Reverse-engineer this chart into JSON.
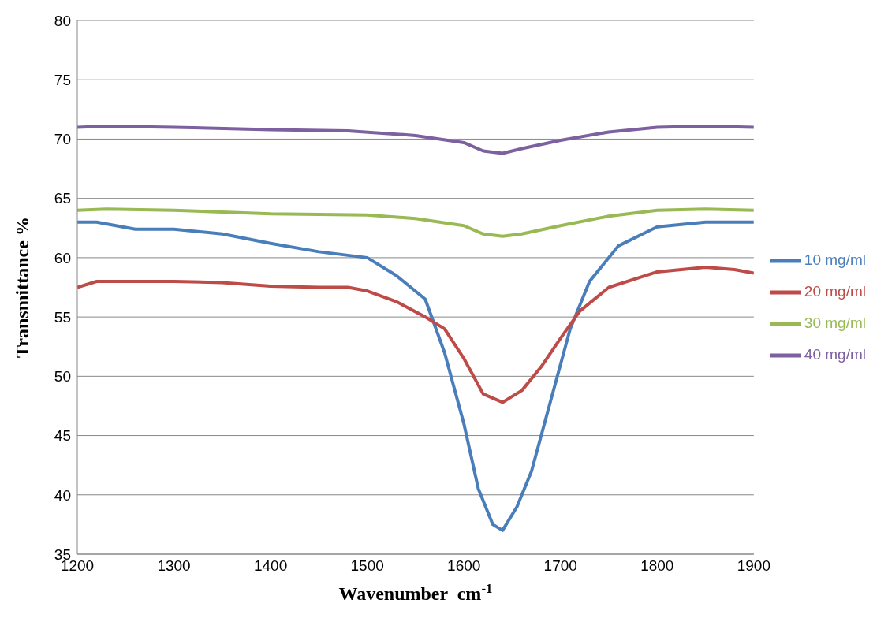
{
  "chart_data": {
    "type": "line",
    "xlabel": "Wavenumber  cm$^{-1}$",
    "ylabel": "Transmittance %",
    "xlim": [
      1200,
      1900
    ],
    "xticks": [
      1200,
      1300,
      1400,
      1500,
      1600,
      1700,
      1800,
      1900
    ],
    "ylim": [
      35,
      80
    ],
    "yticks": [
      35,
      40,
      45,
      50,
      55,
      60,
      65,
      70,
      75,
      80
    ],
    "grid": "y",
    "legend": "right",
    "marker": "none",
    "line_style": "solid",
    "series": [
      {
        "name": "10 mg/ml",
        "color": "#4a7ebb",
        "x": [
          1200,
          1220,
          1260,
          1300,
          1350,
          1400,
          1450,
          1500,
          1530,
          1560,
          1580,
          1600,
          1615,
          1630,
          1640,
          1655,
          1670,
          1690,
          1710,
          1730,
          1760,
          1800,
          1850,
          1900
        ],
        "values": [
          63,
          63,
          62.4,
          62.4,
          62,
          61.2,
          60.5,
          60,
          58.5,
          56.5,
          52,
          46,
          40.5,
          37.5,
          37,
          39,
          42,
          48,
          54,
          58,
          61,
          62.6,
          63,
          63
        ]
      },
      {
        "name": "20 mg/ml",
        "color": "#be4b48",
        "x": [
          1200,
          1220,
          1300,
          1350,
          1400,
          1450,
          1480,
          1500,
          1530,
          1560,
          1580,
          1600,
          1620,
          1640,
          1660,
          1680,
          1700,
          1720,
          1750,
          1800,
          1850,
          1880,
          1900
        ],
        "values": [
          57.5,
          58,
          58,
          57.9,
          57.6,
          57.5,
          57.5,
          57.2,
          56.3,
          55,
          54,
          51.5,
          48.5,
          47.8,
          48.8,
          50.8,
          53.2,
          55.5,
          57.5,
          58.8,
          59.2,
          59,
          58.7
        ]
      },
      {
        "name": "30 mg/ml",
        "color": "#98b954",
        "x": [
          1200,
          1230,
          1300,
          1400,
          1500,
          1550,
          1600,
          1620,
          1640,
          1660,
          1700,
          1750,
          1800,
          1850,
          1900
        ],
        "values": [
          64,
          64.1,
          64,
          63.7,
          63.6,
          63.3,
          62.7,
          62,
          61.8,
          62,
          62.7,
          63.5,
          64,
          64.1,
          64
        ]
      },
      {
        "name": "40 mg/ml",
        "color": "#7d60a0",
        "x": [
          1200,
          1230,
          1300,
          1400,
          1480,
          1550,
          1600,
          1620,
          1640,
          1660,
          1700,
          1750,
          1800,
          1850,
          1900
        ],
        "values": [
          71,
          71.1,
          71,
          70.8,
          70.7,
          70.3,
          69.7,
          69,
          68.8,
          69.2,
          69.9,
          70.6,
          71,
          71.1,
          71
        ]
      }
    ]
  }
}
